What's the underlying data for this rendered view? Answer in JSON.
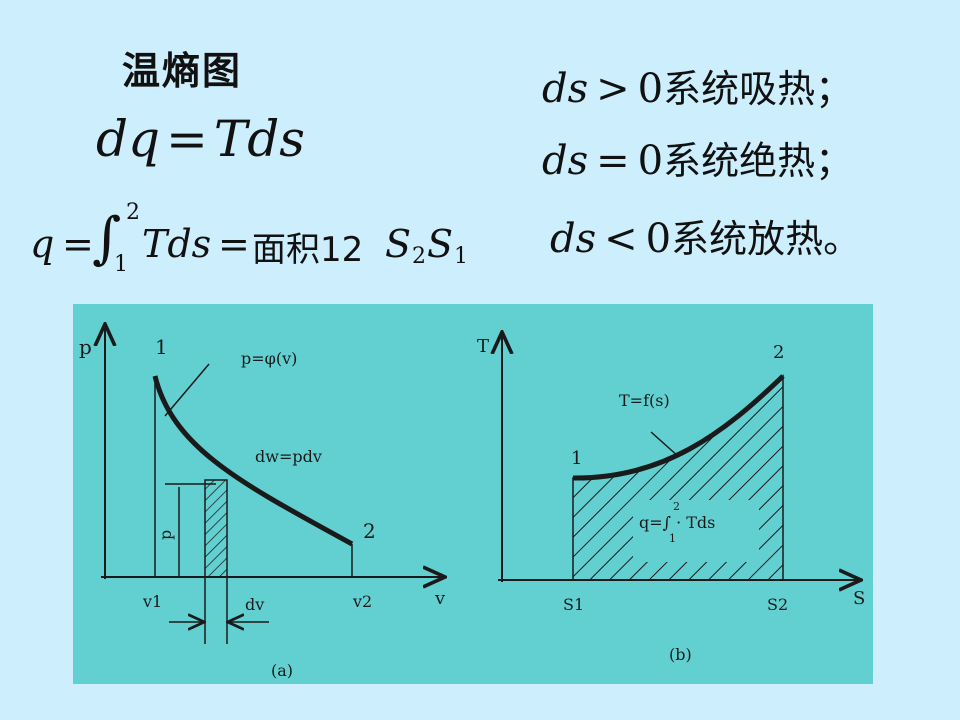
{
  "header": {
    "title": "温熵图",
    "equation_main": {
      "lhs": "dq",
      "op": "=",
      "rhs": "Tds"
    },
    "equation_integral": {
      "lhs": "q",
      "eq1": "=",
      "integral": "∫",
      "upper": "2",
      "lower": "1",
      "integrand": "Tds",
      "eq2": "=",
      "rhs_text": "面积12",
      "s_var": "S",
      "sub2": "2",
      "sub1": "1"
    }
  },
  "conditions": [
    {
      "var": "ds",
      "rel": ">",
      "zero": "0",
      "text": "系统吸热；"
    },
    {
      "var": "ds",
      "rel": "=",
      "zero": "0",
      "text": "系统绝热；"
    },
    {
      "var": "ds",
      "rel": "<",
      "zero": "0",
      "text": "系统放热。"
    }
  ],
  "diagram_a": {
    "caption": "(a)",
    "y_axis_label": "p",
    "x_axis_label": "v",
    "point1_label": "1",
    "point2_label": "2",
    "curve_label": "p=φ(v)",
    "work_label": "dw=pdv",
    "p_label": "p",
    "v1_label": "v1",
    "v2_label": "v2",
    "dv_label": "dv"
  },
  "diagram_b": {
    "caption": "(b)",
    "y_axis_label": "T",
    "x_axis_label": "S",
    "point1_label": "1",
    "point2_label": "2",
    "curve_label": "T=f(s)",
    "integral_label": "q=∫ · Tds",
    "upper": "2",
    "lower": "1",
    "s1_label": "S1",
    "s2_label": "S2"
  },
  "colors": {
    "background": "#cdeefc",
    "diagram_panel": "#62cfd1"
  }
}
